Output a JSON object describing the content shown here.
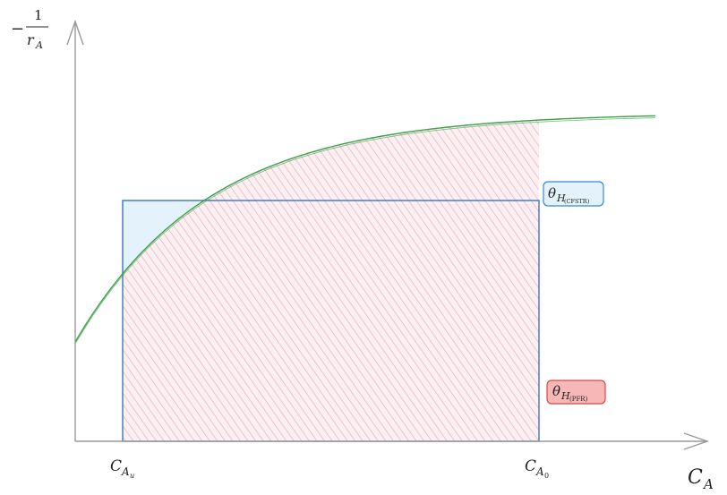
{
  "diagram": {
    "y_axis_label": {
      "prefix": "−",
      "numerator": "1",
      "denominator_main": "r",
      "denominator_sub": "A"
    },
    "x_axis_label": {
      "main": "C",
      "sub": "A"
    },
    "x_ticks": [
      {
        "main": "C",
        "sub": "A",
        "subsub": "u"
      },
      {
        "main": "C",
        "sub": "A",
        "subsub": "0"
      }
    ],
    "cstr_label": {
      "main": "θ",
      "sub": "H",
      "subsub": "(CFSTR)"
    },
    "pfr_label": {
      "main": "θ",
      "sub": "H",
      "subsub": "(PFR)"
    }
  },
  "colors": {
    "axis": "#9a9a9a",
    "curve": "#3aa14a",
    "cstr_fill": "#e3f2fb",
    "cstr_stroke": "#3a76c2",
    "pfr_hatch": "#e9a6b5",
    "pfr_label_fill": "#f7b7b7",
    "pfr_label_stroke": "#d24a4a",
    "cstr_label_stroke": "#3a86d6"
  }
}
